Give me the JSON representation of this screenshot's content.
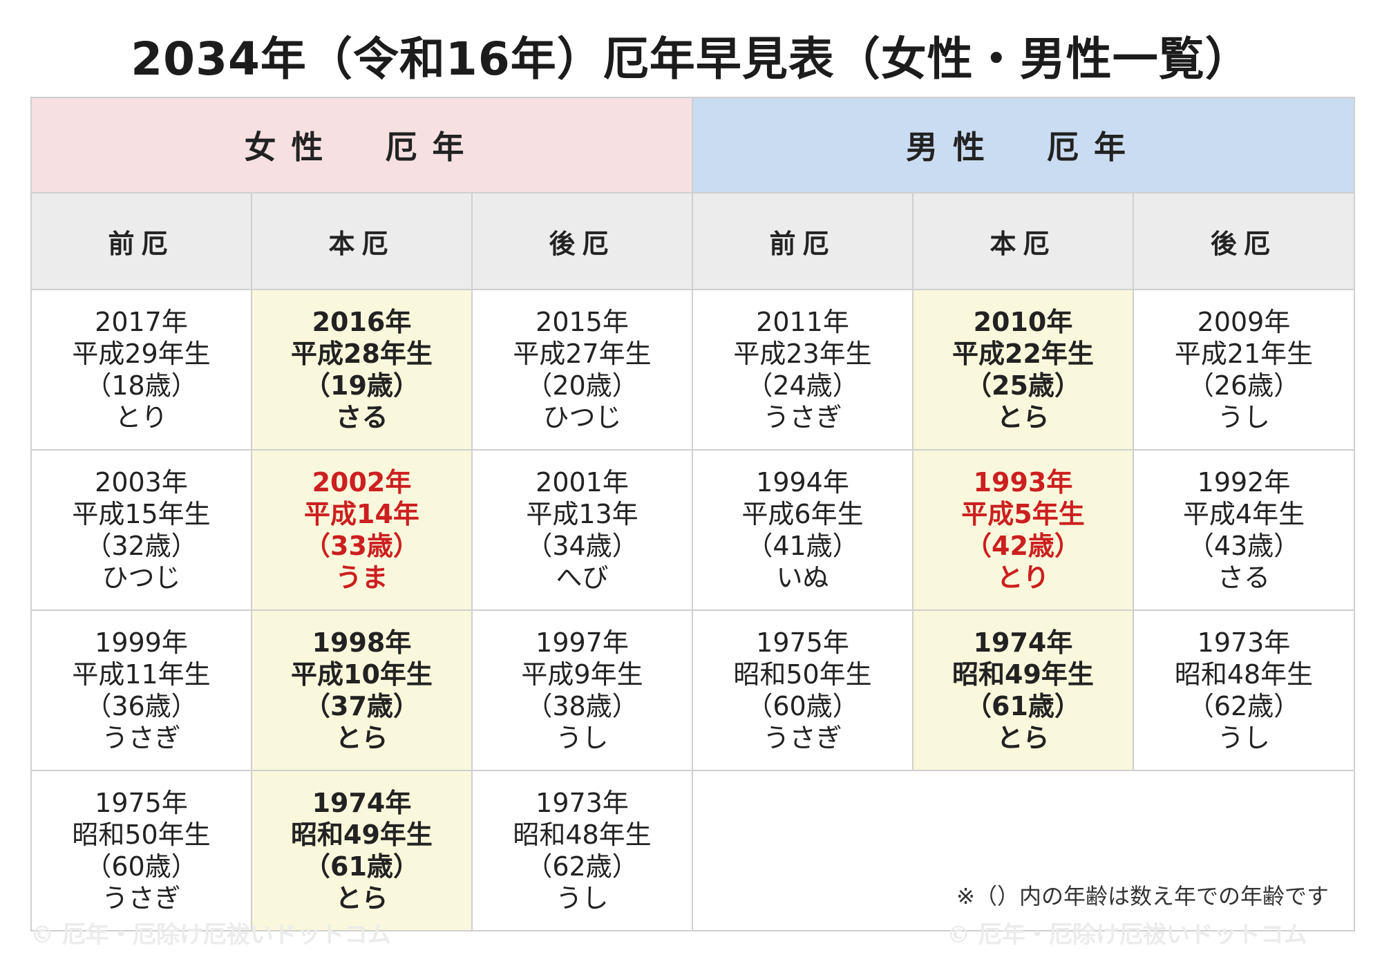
{
  "title": "2034年（令和16年）厄年早見表（女性・男性一覧）",
  "groups": {
    "female": "女性　厄年",
    "male": "男性　厄年"
  },
  "columns": [
    "前厄",
    "本厄",
    "後厄",
    "前厄",
    "本厄",
    "後厄"
  ],
  "rows": [
    [
      {
        "year": "2017年",
        "era": "平成29年生",
        "age": "（18歳）",
        "zodiac": "とり"
      },
      {
        "year": "2016年",
        "era": "平成28年生",
        "age": "（19歳）",
        "zodiac": "さる"
      },
      {
        "year": "2015年",
        "era": "平成27年生",
        "age": "（20歳）",
        "zodiac": "ひつじ"
      },
      {
        "year": "2011年",
        "era": "平成23年生",
        "age": "（24歳）",
        "zodiac": "うさぎ"
      },
      {
        "year": "2010年",
        "era": "平成22年生",
        "age": "（25歳）",
        "zodiac": "とら"
      },
      {
        "year": "2009年",
        "era": "平成21年生",
        "age": "（26歳）",
        "zodiac": "うし"
      }
    ],
    [
      {
        "year": "2003年",
        "era": "平成15年生",
        "age": "（32歳）",
        "zodiac": "ひつじ"
      },
      {
        "year": "2002年",
        "era": "平成14年",
        "age": "（33歳）",
        "zodiac": "うま"
      },
      {
        "year": "2001年",
        "era": "平成13年",
        "age": "（34歳）",
        "zodiac": "へび"
      },
      {
        "year": "1994年",
        "era": "平成6年生",
        "age": "（41歳）",
        "zodiac": "いぬ"
      },
      {
        "year": "1993年",
        "era": "平成5年生",
        "age": "（42歳）",
        "zodiac": "とり"
      },
      {
        "year": "1992年",
        "era": "平成4年生",
        "age": "（43歳）",
        "zodiac": "さる"
      }
    ],
    [
      {
        "year": "1999年",
        "era": "平成11年生",
        "age": "（36歳）",
        "zodiac": "うさぎ"
      },
      {
        "year": "1998年",
        "era": "平成10年生",
        "age": "（37歳）",
        "zodiac": "とら"
      },
      {
        "year": "1997年",
        "era": "平成9年生",
        "age": "（38歳）",
        "zodiac": "うし"
      },
      {
        "year": "1975年",
        "era": "昭和50年生",
        "age": "（60歳）",
        "zodiac": "うさぎ"
      },
      {
        "year": "1974年",
        "era": "昭和49年生",
        "age": "（61歳）",
        "zodiac": "とら"
      },
      {
        "year": "1973年",
        "era": "昭和48年生",
        "age": "（62歳）",
        "zodiac": "うし"
      }
    ],
    [
      {
        "year": "1975年",
        "era": "昭和50年生",
        "age": "（60歳）",
        "zodiac": "うさぎ"
      },
      {
        "year": "1974年",
        "era": "昭和49年生",
        "age": "（61歳）",
        "zodiac": "とら"
      },
      {
        "year": "1973年",
        "era": "昭和48年生",
        "age": "（62歳）",
        "zodiac": "うし"
      }
    ]
  ],
  "note": "※（）内の年齢は数え年での年齢です",
  "watermark": "© 厄年・厄除け厄祓いドットコム",
  "colors": {
    "female_header": "#f7e0e2",
    "male_header": "#c9dcf1",
    "honyaku_bg": "#faf8dc",
    "major_text": "#cc1f1f"
  }
}
